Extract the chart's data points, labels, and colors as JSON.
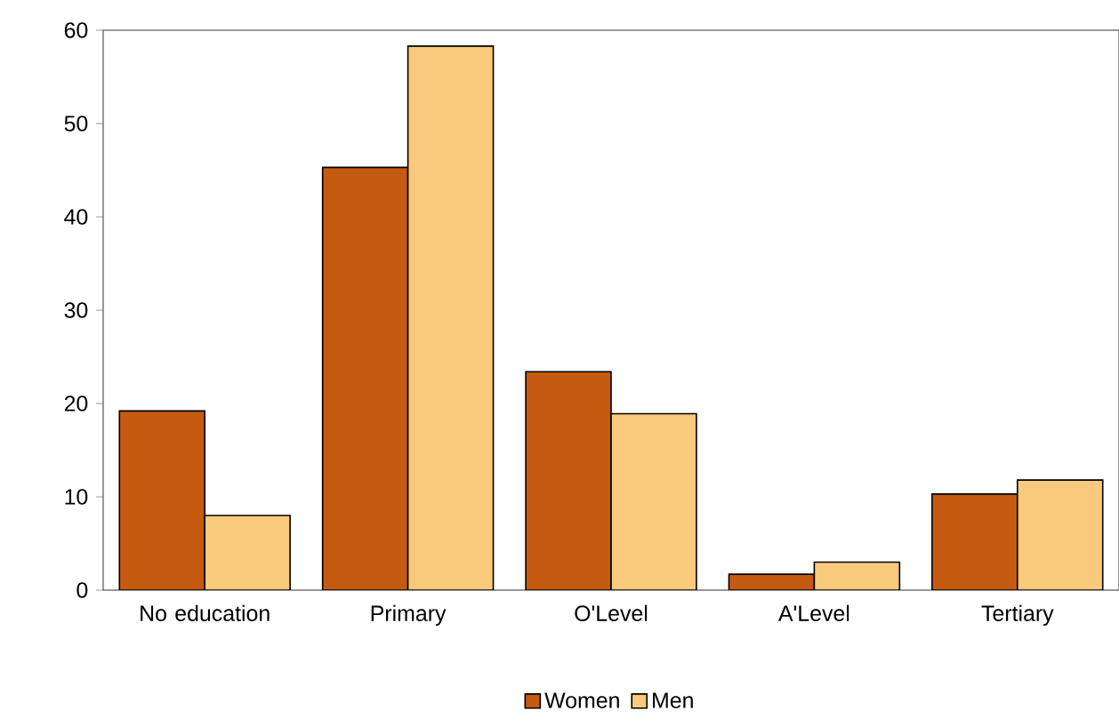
{
  "chart_data": {
    "type": "bar",
    "categories": [
      "No education",
      "Primary",
      "O'Level",
      "A'Level",
      "Tertiary"
    ],
    "series": [
      {
        "name": "Women",
        "color": "#c55a11",
        "values": [
          19.2,
          45.3,
          23.4,
          1.7,
          10.3
        ]
      },
      {
        "name": "Men",
        "color": "#f9c97c",
        "values": [
          8.0,
          58.3,
          18.9,
          3.0,
          11.8
        ]
      }
    ],
    "ylim": [
      0,
      60
    ],
    "yticks": [
      0,
      10,
      20,
      30,
      40,
      50,
      60
    ],
    "grid": false,
    "legend": "bottom"
  }
}
